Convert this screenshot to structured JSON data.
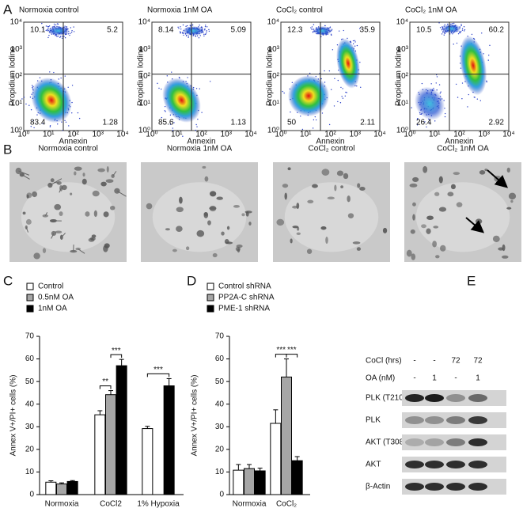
{
  "flow_cytometry": {
    "panel": "A",
    "xlabel": "Annexin",
    "ylabel": "Propidium Iodine",
    "tick_labels": [
      "10⁰",
      "10¹",
      "10²",
      "10³",
      "10⁴"
    ],
    "plots": [
      {
        "title": "Normoxia control",
        "quadrants": [
          10.1,
          5.2,
          83.4,
          1.28
        ]
      },
      {
        "title": "Normoxia 1nM OA",
        "quadrants": [
          8.14,
          5.09,
          85.6,
          1.13
        ]
      },
      {
        "title": "CoCl₂ control",
        "quadrants": [
          12.3,
          35.9,
          50,
          2.11
        ]
      },
      {
        "title": "CoCl₂ 1nM OA",
        "quadrants": [
          10.5,
          60.2,
          26.4,
          2.92
        ]
      }
    ]
  },
  "micrographs": {
    "panel": "B",
    "titles": [
      "Normoxia control",
      "Normoxia 1nM OA",
      "CoCl₂ control",
      "CoCl₂ 1nM OA"
    ]
  },
  "chart_data": [
    {
      "type": "bar",
      "panel": "C",
      "ylabel": "Annex V+/PI+ cells (%)",
      "categories": [
        "Normoxia",
        "CoCl2",
        "1% Hypoxia"
      ],
      "series": [
        {
          "name": "Control",
          "color": "#ffffff",
          "values": [
            5.5,
            35.3,
            29.2
          ],
          "errors": [
            0.6,
            1.8,
            1
          ]
        },
        {
          "name": "0.5nM OA",
          "color": "#a6a6a6",
          "values": [
            4.7,
            44.2,
            null
          ],
          "errors": [
            0.5,
            1.8,
            null
          ]
        },
        {
          "name": "1nM OA",
          "color": "#000000",
          "values": [
            5.8,
            57,
            48.1
          ],
          "errors": [
            0.4,
            2.8,
            3.2
          ]
        }
      ],
      "ylim": [
        0,
        70
      ],
      "yticks": [
        0,
        10,
        20,
        30,
        40,
        50,
        60,
        70
      ],
      "annotations": [
        "**",
        "***",
        "***"
      ]
    },
    {
      "type": "bar",
      "panel": "D",
      "ylabel": "Annex V+/PI+ cells (%)",
      "categories": [
        "Normoxia",
        "CoCl₂"
      ],
      "series": [
        {
          "name": "Control shRNA",
          "color": "#ffffff",
          "values": [
            10.8,
            31.5
          ],
          "errors": [
            2.5,
            6
          ]
        },
        {
          "name": "PP2A-C shRNA",
          "color": "#a6a6a6",
          "values": [
            11.5,
            52
          ],
          "errors": [
            1.8,
            8
          ]
        },
        {
          "name": "PME-1 shRNA",
          "color": "#000000",
          "values": [
            10.5,
            15
          ],
          "errors": [
            1.2,
            1.8
          ]
        }
      ],
      "ylim": [
        0,
        70
      ],
      "yticks": [
        0,
        10,
        20,
        30,
        40,
        50,
        60,
        70
      ],
      "annotations": [
        "***",
        "***"
      ]
    }
  ],
  "western_blot": {
    "panel": "E",
    "conditions": [
      {
        "label": "CoCl (hrs)",
        "values": [
          "-",
          "-",
          72,
          72
        ]
      },
      {
        "label": "OA (nM)",
        "values": [
          "-",
          1,
          "-",
          1
        ]
      }
    ],
    "rows": [
      "PLK (T210)",
      "PLK",
      "AKT (T308)",
      "AKT",
      "β-Actin"
    ]
  }
}
